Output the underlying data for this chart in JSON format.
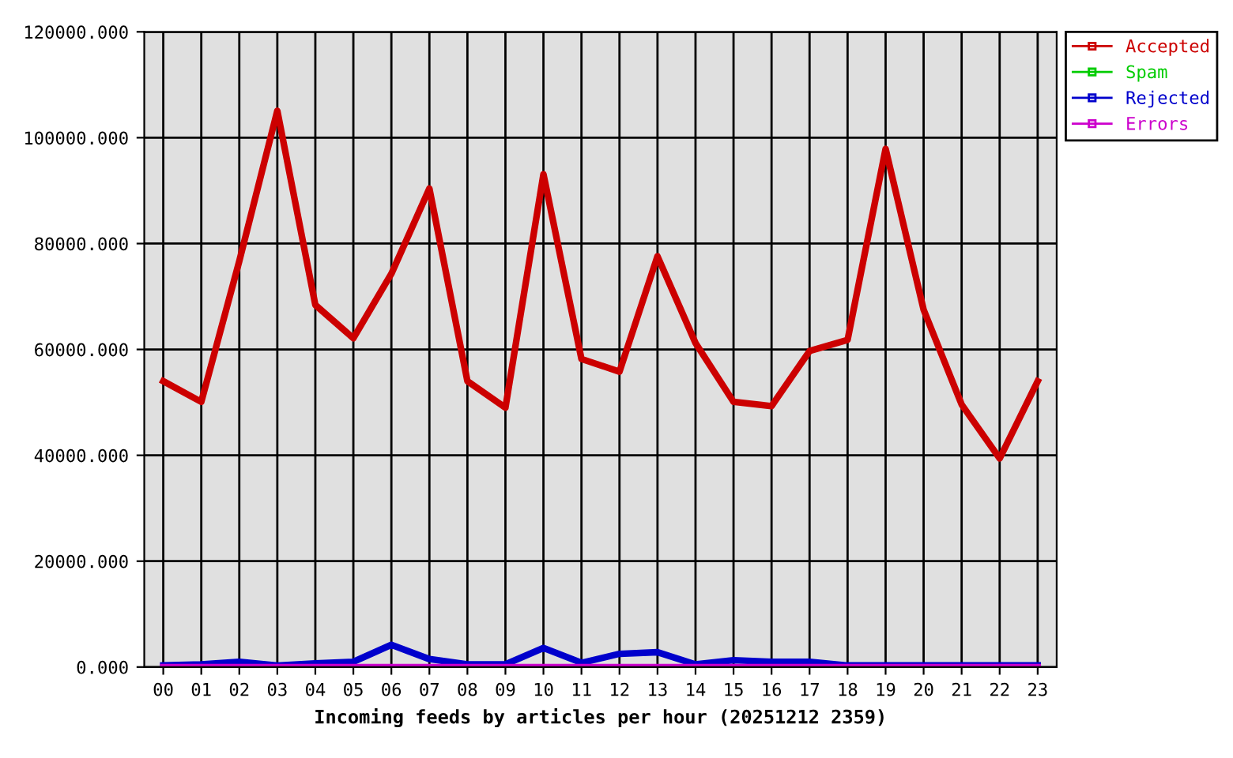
{
  "chart_data": {
    "type": "line",
    "xlabel": "Incoming feeds by articles per hour (20251212 2359)",
    "categories": [
      "00",
      "01",
      "02",
      "03",
      "04",
      "05",
      "06",
      "07",
      "08",
      "09",
      "10",
      "11",
      "12",
      "13",
      "14",
      "15",
      "16",
      "17",
      "18",
      "19",
      "20",
      "21",
      "22",
      "23"
    ],
    "series": [
      {
        "name": "Accepted",
        "color": "#cc0000",
        "values": [
          54000,
          50100,
          76700,
          105100,
          68400,
          62100,
          74300,
          90400,
          54000,
          49000,
          93100,
          58200,
          55800,
          77600,
          61200,
          50100,
          49300,
          59700,
          61800,
          97900,
          67500,
          49600,
          39400,
          54000
        ]
      },
      {
        "name": "Spam",
        "color": "#00cc00",
        "values": [
          null,
          null,
          null,
          null,
          null,
          null,
          null,
          null,
          null,
          null,
          null,
          null,
          null,
          null,
          null,
          null,
          null,
          null,
          null,
          null,
          null,
          null,
          null,
          null
        ]
      },
      {
        "name": "Rejected",
        "color": "#0000cc",
        "values": [
          300,
          500,
          1000,
          300,
          700,
          1000,
          4200,
          1500,
          500,
          500,
          3600,
          800,
          2500,
          2800,
          500,
          1300,
          1000,
          1000,
          300,
          300,
          300,
          300,
          300,
          300
        ]
      },
      {
        "name": "Errors",
        "color": "#cc00cc",
        "values": [
          0,
          0,
          0,
          0,
          0,
          0,
          0,
          0,
          0,
          0,
          0,
          0,
          0,
          0,
          0,
          0,
          0,
          0,
          0,
          0,
          0,
          0,
          0,
          0
        ]
      }
    ],
    "ylim": [
      0,
      120000
    ],
    "yticks": [
      {
        "value": 0,
        "label": "0.000"
      },
      {
        "value": 20000,
        "label": "20000.000"
      },
      {
        "value": 40000,
        "label": "40000.000"
      },
      {
        "value": 60000,
        "label": "60000.000"
      },
      {
        "value": 80000,
        "label": "80000.000"
      },
      {
        "value": 100000,
        "label": "100000.000"
      },
      {
        "value": 120000,
        "label": "120000.000"
      }
    ],
    "grid": true,
    "legend": "top right",
    "marker": "none",
    "line_style": "solid"
  }
}
